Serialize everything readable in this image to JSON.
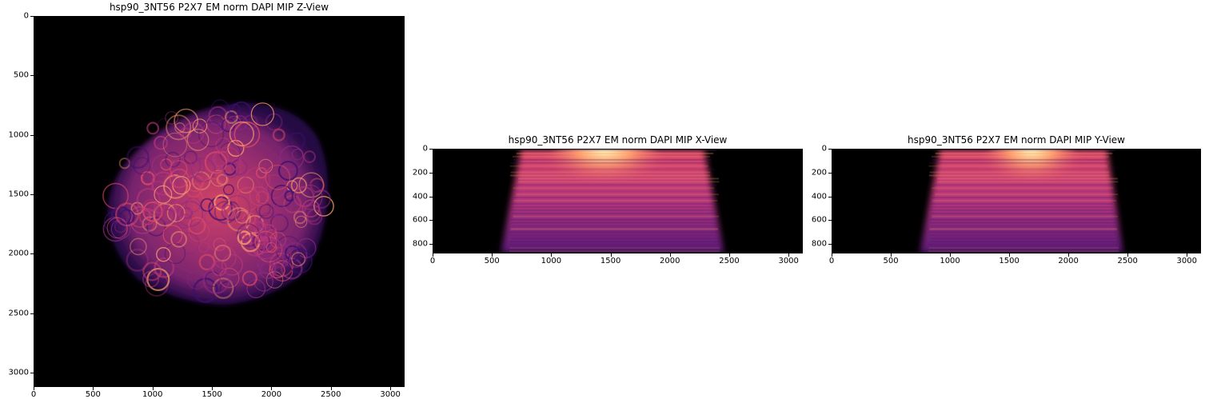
{
  "colors": {
    "background": "#000000",
    "deep_purple": "#3b0f70",
    "purple": "#8c2981",
    "magenta": "#de4968",
    "orange": "#fe9f6d",
    "pale": "#fcfdbf"
  },
  "panels": [
    {
      "id": "z-view",
      "title": "hsp90_3NT56 P2X7 EM norm DAPI MIP Z-View",
      "x_ticks": [
        "0",
        "500",
        "1000",
        "1500",
        "2000",
        "2500",
        "3000"
      ],
      "y_ticks": [
        "0",
        "500",
        "1000",
        "1500",
        "2000",
        "2500",
        "3000"
      ],
      "x_range": [
        0,
        3120
      ],
      "y_range": [
        0,
        3120
      ]
    },
    {
      "id": "x-view",
      "title": "hsp90_3NT56 P2X7 EM norm DAPI MIP X-View",
      "x_ticks": [
        "0",
        "500",
        "1000",
        "1500",
        "2000",
        "2500",
        "3000"
      ],
      "y_ticks": [
        "0",
        "200",
        "400",
        "600",
        "800"
      ],
      "x_range": [
        0,
        3120
      ],
      "y_range": [
        0,
        880
      ]
    },
    {
      "id": "y-view",
      "title": "hsp90_3NT56 P2X7 EM norm DAPI MIP Y-View",
      "x_ticks": [
        "0",
        "500",
        "1000",
        "1500",
        "2000",
        "2500",
        "3000"
      ],
      "y_ticks": [
        "0",
        "200",
        "400",
        "600",
        "800"
      ],
      "x_range": [
        0,
        3120
      ],
      "y_range": [
        0,
        880
      ]
    }
  ]
}
